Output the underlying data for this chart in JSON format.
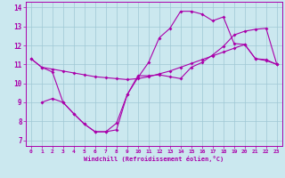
{
  "bg_color": "#cbe8ef",
  "line_color": "#aa00aa",
  "grid_color": "#9fc8d4",
  "xlabel": "Windchill (Refroidissement éolien,°C)",
  "xlim": [
    -0.5,
    23.5
  ],
  "ylim": [
    6.7,
    14.3
  ],
  "xticks": [
    0,
    1,
    2,
    3,
    4,
    5,
    6,
    7,
    8,
    9,
    10,
    11,
    12,
    13,
    14,
    15,
    16,
    17,
    18,
    19,
    20,
    21,
    22,
    23
  ],
  "yticks": [
    7,
    8,
    9,
    10,
    11,
    12,
    13,
    14
  ],
  "line1_x": [
    0,
    1,
    2,
    3,
    4,
    5,
    6,
    7,
    8,
    9,
    10,
    11,
    12,
    13,
    14,
    15,
    16,
    17,
    18,
    19,
    20,
    21,
    22,
    23
  ],
  "line1_y": [
    11.3,
    10.85,
    10.75,
    10.65,
    10.55,
    10.45,
    10.35,
    10.3,
    10.25,
    10.2,
    10.25,
    10.35,
    10.5,
    10.65,
    10.85,
    11.05,
    11.25,
    11.45,
    11.65,
    11.85,
    12.05,
    11.3,
    11.25,
    11.0
  ],
  "line2_x": [
    0,
    1,
    2,
    3,
    4,
    5,
    6,
    7,
    8,
    9,
    10,
    11,
    12,
    13,
    14,
    15,
    16,
    17,
    18,
    19,
    20,
    21,
    22,
    23
  ],
  "line2_y": [
    11.3,
    10.85,
    10.6,
    9.0,
    8.4,
    7.85,
    7.45,
    7.45,
    7.9,
    9.4,
    10.3,
    11.1,
    12.4,
    12.9,
    13.8,
    13.8,
    13.65,
    13.3,
    13.5,
    12.1,
    12.05,
    11.3,
    11.2,
    11.0
  ],
  "line3_x": [
    1,
    2,
    3,
    4,
    5,
    6,
    7,
    8,
    9,
    10,
    11,
    12,
    13,
    14,
    15,
    16,
    17,
    18,
    19,
    20,
    21,
    22,
    23
  ],
  "line3_y": [
    9.0,
    9.2,
    9.0,
    8.4,
    7.85,
    7.45,
    7.45,
    7.55,
    9.4,
    10.4,
    10.4,
    10.45,
    10.35,
    10.25,
    10.85,
    11.1,
    11.5,
    11.95,
    12.55,
    12.75,
    12.85,
    12.9,
    11.0
  ]
}
